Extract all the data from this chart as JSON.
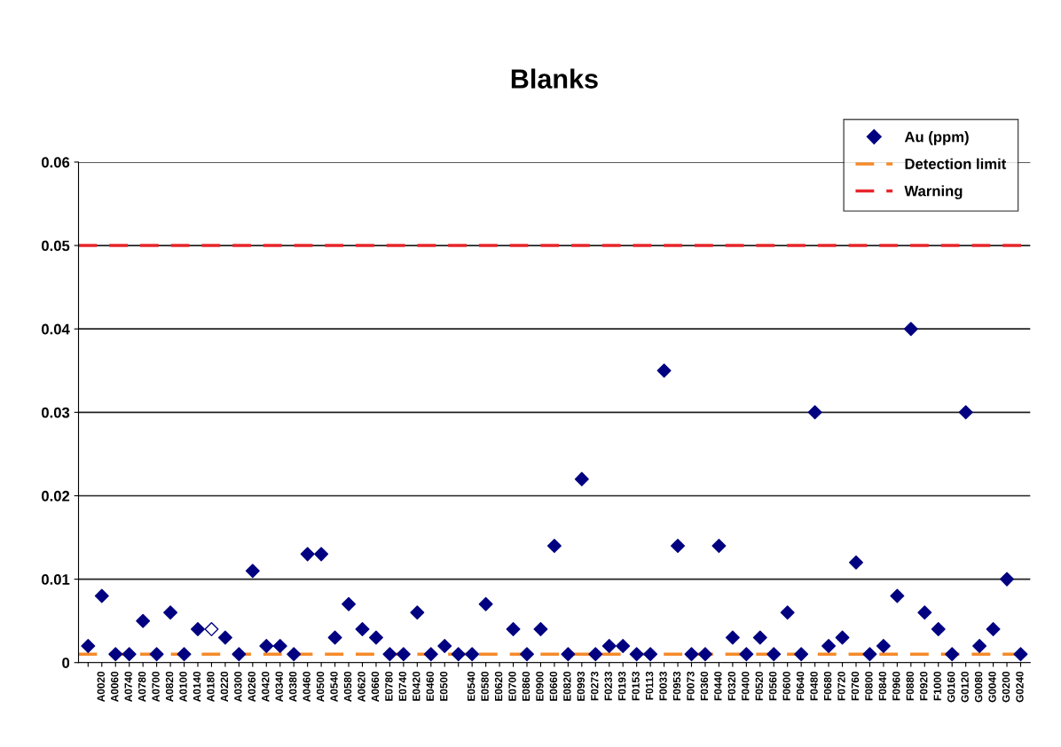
{
  "chart_data": {
    "type": "scatter",
    "title": "Blanks",
    "categories": [
      null,
      "A0020",
      "A0060",
      "A0740",
      "A0780",
      "A0700",
      "A0820",
      "A0100",
      "A0140",
      "A0180",
      "A0220",
      "A0300",
      "A0260",
      "A0420",
      "A0340",
      "A0380",
      "A0460",
      "A0500",
      "A0540",
      "A0580",
      "A0620",
      "A0660",
      "E0780",
      "E0740",
      "E0420",
      "E0460",
      "E0500",
      null,
      "E0540",
      "E0580",
      "E0620",
      "E0700",
      "E0860",
      "E0900",
      "E0660",
      "E0820",
      "E0993",
      "F0273",
      "F0233",
      "F0193",
      "F0153",
      "F0113",
      "F0033",
      "F0953",
      "F0073",
      "F0360",
      "F0440",
      "F0320",
      "F0400",
      "F0520",
      "F0560",
      "F0600",
      "F0640",
      "F0480",
      "F0680",
      "F0720",
      "F0760",
      "F0800",
      "F0840",
      "F0960",
      "F0880",
      "F0920",
      "F1000",
      "G0160",
      "G0120",
      "G0080",
      "G0040",
      "G0200",
      "G0240"
    ],
    "series": [
      {
        "name": "Au (ppm)",
        "color": "#000080",
        "values": [
          0.002,
          0.008,
          0.001,
          0.001,
          0.005,
          0.001,
          0.006,
          0.001,
          0.004,
          null,
          0.003,
          0.001,
          0.011,
          0.002,
          0.002,
          0.001,
          0.013,
          0.013,
          0.003,
          0.007,
          0.004,
          0.003,
          0.001,
          0.001,
          0.006,
          0.001,
          0.002,
          0.001,
          0.001,
          0.007,
          null,
          0.004,
          0.001,
          0.004,
          0.014,
          0.001,
          0.022,
          0.001,
          0.002,
          0.002,
          0.001,
          0.001,
          0.035,
          0.014,
          0.001,
          0.001,
          0.014,
          0.003,
          0.001,
          0.003,
          0.001,
          0.006,
          0.001,
          0.03,
          0.002,
          0.003,
          0.012,
          0.001,
          0.002,
          0.008,
          0.04,
          0.006,
          0.004,
          0.001,
          0.03,
          0.002,
          0.004,
          0.01,
          0.001
        ]
      },
      {
        "color": "#ffffff",
        "values": [
          null,
          null,
          null,
          null,
          null,
          null,
          null,
          null,
          null,
          0.004,
          null,
          null,
          null,
          null,
          null,
          null,
          null,
          null,
          null,
          null,
          null,
          null,
          null,
          null,
          null,
          null,
          null,
          null,
          null,
          null,
          null,
          null,
          null,
          null,
          null,
          null,
          null,
          null,
          null,
          null,
          null,
          null,
          null,
          null,
          null,
          null,
          null,
          null,
          null,
          null,
          null,
          null,
          null,
          null,
          null,
          null,
          null,
          null,
          null,
          null,
          null,
          null,
          null,
          null,
          null,
          null,
          null,
          null,
          null
        ]
      }
    ],
    "ref_lines": [
      {
        "axis": "y",
        "value": 0.001,
        "label": "Detection limit",
        "color": "#f58a2a",
        "line_style": "dashed"
      },
      {
        "axis": "y",
        "value": 0.05,
        "label": "Warning",
        "color": "#e8262b",
        "line_style": "dashed"
      }
    ],
    "ylim": [
      0,
      0.06
    ],
    "yticks": [
      0,
      0.01,
      0.02,
      0.03,
      0.04,
      0.05,
      0.06
    ],
    "grid": "y",
    "legend": "top right",
    "marker": "diamond"
  }
}
